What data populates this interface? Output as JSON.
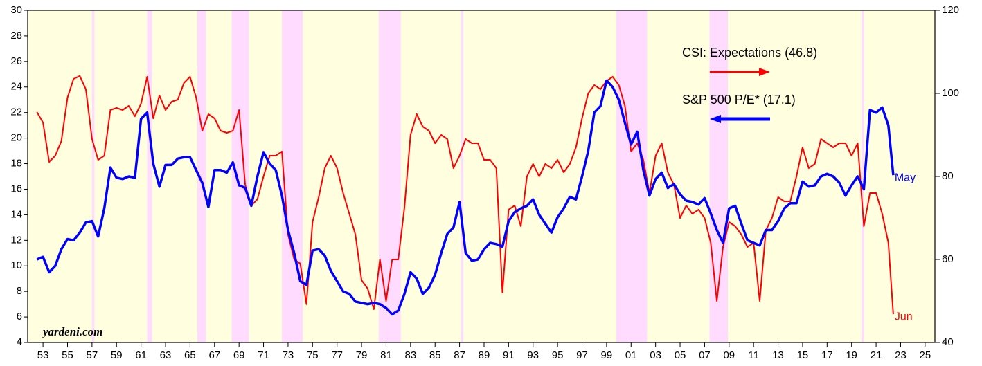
{
  "chart_data": {
    "type": "line",
    "watermark": "yardeni.com",
    "x": [
      1952.5,
      1953,
      1953.5,
      1954,
      1954.5,
      1955,
      1955.5,
      1956,
      1956.5,
      1957,
      1957.5,
      1958,
      1958.5,
      1959,
      1959.5,
      1960,
      1960.5,
      1961,
      1961.5,
      1962,
      1962.5,
      1963,
      1963.5,
      1964,
      1964.5,
      1965,
      1965.5,
      1966,
      1966.5,
      1967,
      1967.5,
      1968,
      1968.5,
      1969,
      1969.5,
      1970,
      1970.5,
      1971,
      1971.5,
      1972,
      1972.5,
      1973,
      1973.5,
      1974,
      1974.5,
      1975,
      1975.5,
      1976,
      1976.5,
      1977,
      1977.5,
      1978,
      1978.5,
      1979,
      1979.5,
      1980,
      1980.5,
      1981,
      1981.5,
      1982,
      1982.5,
      1983,
      1983.5,
      1984,
      1984.5,
      1985,
      1985.5,
      1986,
      1986.5,
      1987,
      1987.5,
      1988,
      1988.5,
      1989,
      1989.5,
      1990,
      1990.5,
      1991,
      1991.5,
      1992,
      1992.5,
      1993,
      1993.5,
      1994,
      1994.5,
      1995,
      1995.5,
      1996,
      1996.5,
      1997,
      1997.5,
      1998,
      1998.5,
      1999,
      1999.5,
      2000,
      2000.5,
      2001,
      2001.5,
      2002,
      2002.5,
      2003,
      2003.5,
      2004,
      2004.5,
      2005,
      2005.5,
      2006,
      2006.5,
      2007,
      2007.5,
      2008,
      2008.5,
      2009,
      2009.5,
      2010,
      2010.5,
      2011,
      2011.5,
      2012,
      2012.5,
      2013,
      2013.5,
      2014,
      2014.5,
      2015,
      2015.5,
      2016,
      2016.5,
      2017,
      2017.5,
      2018,
      2018.5,
      2019,
      2019.5,
      2020,
      2020.5,
      2021,
      2021.5,
      2022,
      2022.4
    ],
    "series": [
      {
        "name": "CSI: Expectations (46.8)",
        "color": "#ff0000",
        "axis": "y2",
        "end_label": "Jun",
        "values": [
          95.5,
          93,
          83.5,
          85,
          88.5,
          99,
          103.5,
          104.2,
          101,
          89,
          84,
          85,
          96,
          96.5,
          96,
          97,
          94.5,
          97.5,
          104,
          94,
          99.5,
          96,
          98,
          98.5,
          102.5,
          104,
          99,
          91,
          95,
          94,
          91,
          90.5,
          91,
          96,
          78,
          73,
          74.5,
          80,
          85,
          85,
          86,
          66,
          60,
          59,
          49.2,
          69,
          75,
          82,
          85,
          82,
          76,
          71,
          66,
          55,
          53,
          48,
          60,
          50,
          60,
          60,
          72.5,
          90,
          95,
          92,
          91,
          88,
          90,
          89,
          82,
          85,
          89,
          88,
          88,
          84,
          84,
          82,
          52,
          72,
          73,
          68,
          80,
          83,
          80,
          83,
          82,
          84,
          81,
          83,
          87,
          94,
          100,
          102,
          101,
          103,
          104,
          102,
          97,
          86,
          88,
          84,
          76,
          85,
          88,
          81,
          78,
          70,
          73,
          71,
          72,
          70,
          64,
          50,
          63,
          69,
          68,
          66,
          63,
          64,
          50,
          67,
          70,
          75,
          74,
          74,
          80,
          87,
          82,
          83,
          89,
          88,
          87,
          88,
          88,
          85,
          88,
          68,
          76,
          76,
          71,
          64,
          46.8
        ]
      },
      {
        "name": "S&P 500 P/E* (17.1)",
        "color": "#0000ff",
        "axis": "y",
        "end_label": "May",
        "values": [
          10.5,
          10.7,
          9.5,
          10.0,
          11.3,
          12.1,
          12.0,
          12.6,
          13.4,
          13.5,
          12.3,
          14.5,
          17.7,
          16.9,
          16.8,
          17.0,
          16.9,
          21.5,
          22.0,
          18.0,
          16.2,
          17.9,
          17.9,
          18.4,
          18.5,
          18.5,
          17.5,
          16.5,
          14.6,
          17.5,
          17.5,
          17.3,
          18.1,
          16.3,
          16.1,
          14.7,
          17.0,
          18.9,
          18.0,
          17.5,
          15.5,
          12.8,
          11.0,
          8.8,
          8.5,
          11.2,
          11.3,
          10.8,
          9.6,
          8.8,
          8.0,
          7.8,
          7.2,
          7.1,
          7.0,
          7.1,
          7.0,
          6.7,
          6.2,
          6.5,
          7.8,
          9.5,
          9.0,
          7.8,
          8.3,
          9.3,
          11.0,
          12.5,
          13.0,
          15.0,
          11.0,
          10.4,
          10.5,
          11.3,
          11.8,
          11.7,
          11.5,
          13.5,
          14.2,
          14.5,
          14.7,
          15.2,
          14.0,
          13.3,
          12.6,
          13.8,
          14.5,
          15.4,
          15.2,
          17.0,
          19.0,
          22.0,
          22.5,
          24.5,
          24.0,
          23.0,
          21.2,
          19.5,
          20.5,
          17.5,
          15.5,
          16.8,
          17.3,
          16.1,
          16.4,
          15.6,
          15.1,
          15.0,
          14.8,
          15.3,
          14.1,
          12.8,
          11.8,
          14.5,
          14.7,
          13.3,
          12.0,
          11.8,
          11.6,
          12.8,
          12.8,
          13.5,
          14.5,
          14.9,
          14.9,
          16.6,
          16.2,
          16.3,
          17.0,
          17.2,
          17.0,
          16.5,
          15.5,
          16.3,
          17.0,
          16.0,
          22.2,
          22.0,
          22.4,
          21.0,
          17.1
        ]
      }
    ],
    "recessions": [
      [
        1957.0,
        1957.2
      ],
      [
        1961.5,
        1961.9
      ],
      [
        1965.6,
        1966.3
      ],
      [
        1968.4,
        1969.8
      ],
      [
        1972.5,
        1974.2
      ],
      [
        1980.4,
        1982.2
      ],
      [
        1987.1,
        1987.3
      ],
      [
        1999.8,
        2002.3
      ],
      [
        2007.4,
        2008.9
      ],
      [
        2019.8,
        2020.0
      ]
    ],
    "background_color": "#ffffe0",
    "recession_color": "#ffdcff",
    "xlim": [
      1951.75,
      2025.8
    ],
    "xticks": [
      {
        "value": 1953,
        "label": "53"
      },
      {
        "value": 1955,
        "label": "55"
      },
      {
        "value": 1957,
        "label": "57"
      },
      {
        "value": 1959,
        "label": "59"
      },
      {
        "value": 1961,
        "label": "61"
      },
      {
        "value": 1963,
        "label": "63"
      },
      {
        "value": 1965,
        "label": "65"
      },
      {
        "value": 1967,
        "label": "67"
      },
      {
        "value": 1969,
        "label": "69"
      },
      {
        "value": 1971,
        "label": "71"
      },
      {
        "value": 1973,
        "label": "73"
      },
      {
        "value": 1975,
        "label": "75"
      },
      {
        "value": 1977,
        "label": "77"
      },
      {
        "value": 1979,
        "label": "79"
      },
      {
        "value": 1981,
        "label": "81"
      },
      {
        "value": 1983,
        "label": "83"
      },
      {
        "value": 1985,
        "label": "85"
      },
      {
        "value": 1987,
        "label": "87"
      },
      {
        "value": 1989,
        "label": "89"
      },
      {
        "value": 1991,
        "label": "91"
      },
      {
        "value": 1993,
        "label": "93"
      },
      {
        "value": 1995,
        "label": "95"
      },
      {
        "value": 1997,
        "label": "97"
      },
      {
        "value": 1999,
        "label": "99"
      },
      {
        "value": 2001,
        "label": "01"
      },
      {
        "value": 2003,
        "label": "03"
      },
      {
        "value": 2005,
        "label": "05"
      },
      {
        "value": 2007,
        "label": "07"
      },
      {
        "value": 2009,
        "label": "09"
      },
      {
        "value": 2011,
        "label": "11"
      },
      {
        "value": 2013,
        "label": "13"
      },
      {
        "value": 2015,
        "label": "15"
      },
      {
        "value": 2017,
        "label": "17"
      },
      {
        "value": 2019,
        "label": "19"
      },
      {
        "value": 2021,
        "label": "21"
      },
      {
        "value": 2023,
        "label": "23"
      },
      {
        "value": 2025,
        "label": "25"
      }
    ],
    "ylim": [
      4,
      30
    ],
    "yticks": [
      4,
      6,
      8,
      10,
      12,
      14,
      16,
      18,
      20,
      22,
      24,
      26,
      28,
      30
    ],
    "y2lim": [
      40,
      120
    ],
    "y2ticks": [
      40,
      60,
      80,
      100,
      120
    ]
  }
}
